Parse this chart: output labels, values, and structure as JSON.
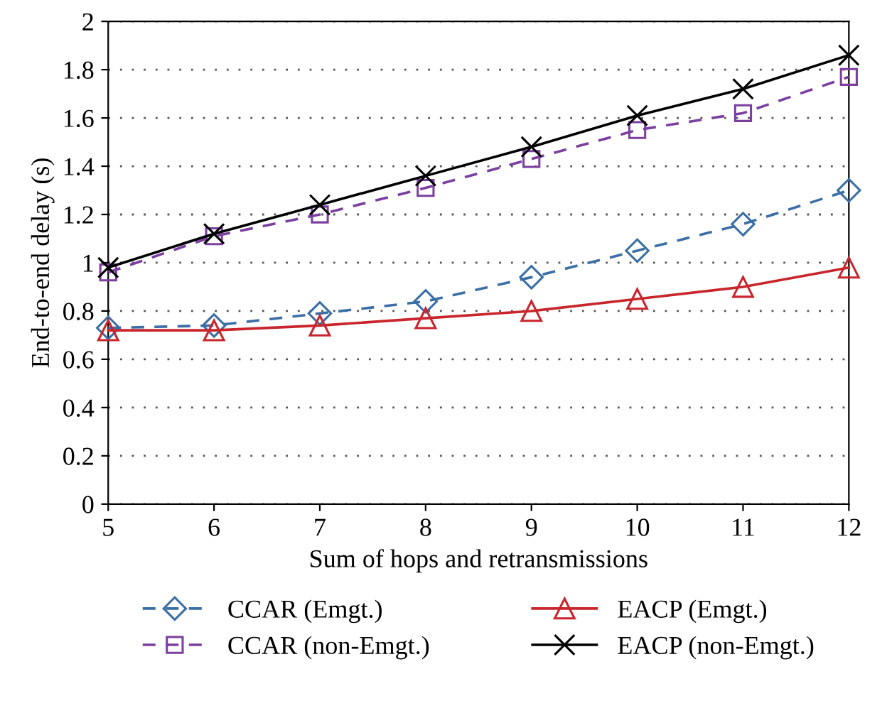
{
  "chart_data": {
    "type": "line",
    "xlabel": "Sum of hops and retransmissions",
    "ylabel": "End-to-end delay (s)",
    "x": [
      5,
      6,
      7,
      8,
      9,
      10,
      11,
      12
    ],
    "xlim": [
      5,
      12
    ],
    "xticks": [
      5,
      6,
      7,
      8,
      9,
      10,
      11,
      12
    ],
    "ylim": [
      0,
      2
    ],
    "yticks": [
      0,
      0.2,
      0.4,
      0.6,
      0.8,
      1,
      1.2,
      1.4,
      1.6,
      1.8,
      2
    ],
    "grid": "y",
    "legend": "bottom",
    "series": [
      {
        "name": "CCAR (Emgt.)",
        "color": "#3a6ea5",
        "marker": "diamond",
        "line_style": "dashed",
        "values": [
          0.73,
          0.74,
          0.79,
          0.84,
          0.94,
          1.05,
          1.16,
          1.3
        ]
      },
      {
        "name": "CCAR (non-Emgt.)",
        "color": "#7b3fa0",
        "marker": "square",
        "line_style": "dashed",
        "values": [
          0.96,
          1.11,
          1.2,
          1.31,
          1.43,
          1.55,
          1.62,
          1.77
        ]
      },
      {
        "name": "EACP (Emgt.)",
        "color": "#c8262c",
        "marker": "triangle",
        "line_style": "solid",
        "values": [
          0.72,
          0.72,
          0.74,
          0.77,
          0.8,
          0.85,
          0.9,
          0.98
        ]
      },
      {
        "name": "EACP (non-Emgt.)",
        "color": "#000000",
        "marker": "cross",
        "line_style": "solid",
        "values": [
          0.98,
          1.12,
          1.24,
          1.36,
          1.48,
          1.61,
          1.72,
          1.86
        ]
      }
    ]
  }
}
